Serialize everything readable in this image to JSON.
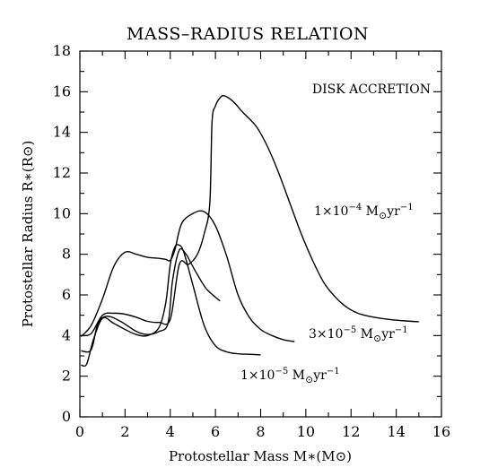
{
  "chart_data": {
    "type": "line",
    "title": "MASS–RADIUS RELATION",
    "xlabel": "Protostellar Mass M∗(M⊙)",
    "ylabel": "Protostellar Radius R∗(R⊙)",
    "xlim": [
      0,
      16
    ],
    "ylim": [
      0,
      18
    ],
    "xticks": [
      "0",
      "2",
      "4",
      "6",
      "8",
      "10",
      "12",
      "14",
      "16"
    ],
    "yticks": [
      "0",
      "2",
      "4",
      "6",
      "8",
      "10",
      "12",
      "14",
      "16",
      "18"
    ],
    "grid": false,
    "annotation": "DISK ACCRETION",
    "series": [
      {
        "name": "1×10⁻⁴ M⊙yr⁻¹",
        "x": [
          0.05,
          0.5,
          1.0,
          1.5,
          2.0,
          2.5,
          3.0,
          3.5,
          4.0,
          4.4,
          4.8,
          5.2,
          5.5,
          5.75,
          5.85,
          6.0,
          6.2,
          6.4,
          6.8,
          7.2,
          7.8,
          8.3,
          8.8,
          9.3,
          9.8,
          10.3,
          10.8,
          11.3,
          11.8,
          12.3,
          12.8,
          13.3,
          13.8,
          14.4,
          15.0
        ],
        "y": [
          4.0,
          4.1,
          5.0,
          5.1,
          5.05,
          4.9,
          4.7,
          4.65,
          4.8,
          7.5,
          7.5,
          8.0,
          9.0,
          10.5,
          14.5,
          15.3,
          15.7,
          15.8,
          15.5,
          15.0,
          14.3,
          13.3,
          12.0,
          10.5,
          9.0,
          7.7,
          6.6,
          5.9,
          5.4,
          5.1,
          4.95,
          4.85,
          4.78,
          4.72,
          4.68
        ]
      },
      {
        "name": "3×10⁻⁵ M⊙yr⁻¹",
        "x": [
          0.05,
          0.5,
          1.0,
          1.5,
          2.0,
          2.5,
          3.0,
          3.5,
          3.8,
          4.0,
          4.2,
          4.5,
          5.0,
          5.5,
          6.0,
          6.5,
          7.0,
          7.5,
          8.0,
          8.5,
          9.0,
          9.5
        ],
        "y": [
          3.95,
          4.5,
          5.8,
          7.4,
          8.1,
          8.0,
          7.85,
          7.8,
          7.75,
          7.7,
          8.2,
          9.5,
          10.0,
          10.1,
          9.4,
          7.9,
          6.0,
          4.9,
          4.3,
          4.0,
          3.8,
          3.7
        ]
      },
      {
        "name": "1×10⁻⁵ M⊙yr⁻¹",
        "x": [
          0.05,
          0.3,
          0.6,
          1.0,
          1.5,
          2.0,
          2.5,
          3.0,
          3.5,
          3.8,
          4.0,
          4.2,
          4.4,
          4.6,
          5.0,
          5.5,
          6.0,
          6.5,
          7.0,
          7.5,
          8.0
        ],
        "y": [
          2.55,
          2.6,
          3.8,
          4.85,
          4.6,
          4.3,
          4.05,
          4.0,
          4.4,
          5.6,
          7.5,
          8.35,
          8.45,
          8.1,
          6.5,
          4.5,
          3.5,
          3.2,
          3.1,
          3.08,
          3.05
        ]
      },
      {
        "name": "",
        "x": [
          0.05,
          0.5,
          0.8,
          1.2,
          1.8,
          2.5,
          3.0,
          3.5,
          3.9,
          4.1,
          4.4,
          4.7,
          4.9,
          5.2,
          5.6,
          6.2
        ],
        "y": [
          3.25,
          3.3,
          4.6,
          4.95,
          4.7,
          4.2,
          4.05,
          4.2,
          4.6,
          6.7,
          8.2,
          8.0,
          7.6,
          7.0,
          6.3,
          5.7
        ]
      }
    ],
    "series_labels": [
      {
        "series": 0,
        "parts": [
          "1×10",
          "−4",
          " M",
          "⊙",
          "yr",
          "−1"
        ]
      },
      {
        "series": 1,
        "parts": [
          "3×10",
          "−5",
          " M",
          "⊙",
          "yr",
          "−1"
        ]
      },
      {
        "series": 2,
        "parts": [
          "1×10",
          "−5",
          " M",
          "⊙",
          "yr",
          "−1"
        ]
      }
    ]
  }
}
